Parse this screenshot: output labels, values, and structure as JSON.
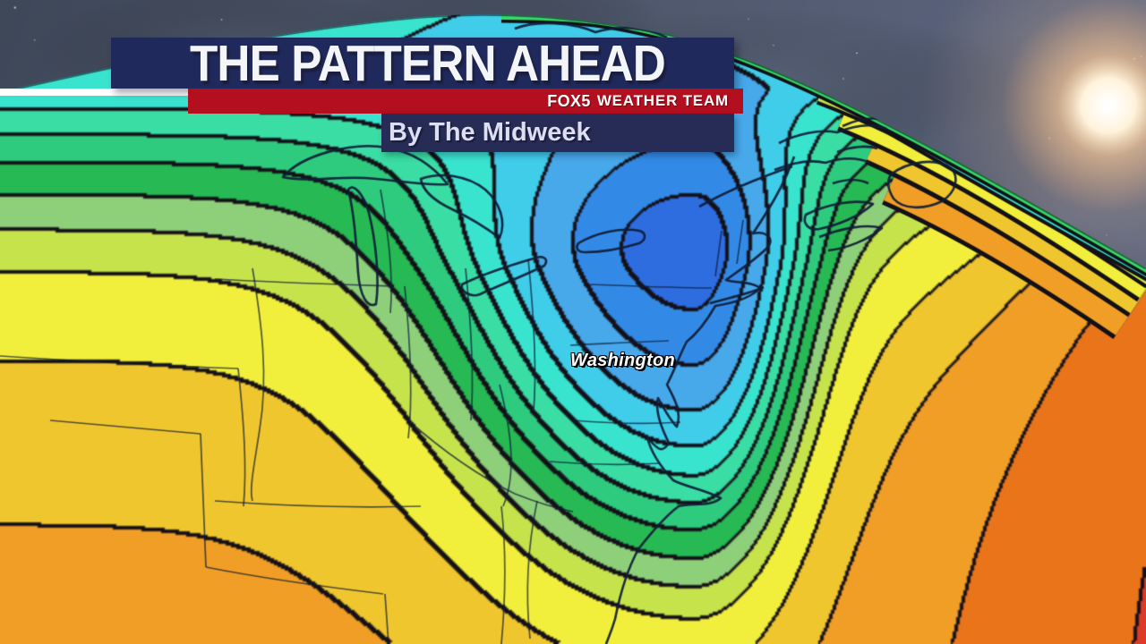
{
  "banner": {
    "title": "THE PATTERN AHEAD",
    "brand": "FOX5",
    "team": "WEATHER TEAM",
    "subtitle": "By The Midweek"
  },
  "map": {
    "city_label": "Washington",
    "band_colors": [
      "#2e6de0",
      "#338ae6",
      "#47a8ea",
      "#3fcdea",
      "#39e4cf",
      "#3adda4",
      "#2ecb7e",
      "#27b954",
      "#8ecf7a",
      "#c6e34b",
      "#f1ef3b",
      "#f0c62e",
      "#f09e25",
      "#ea7419",
      "#dc3b28"
    ],
    "band_edges": [
      -1.7,
      -1.35,
      -1.0,
      -0.7,
      -0.45,
      -0.22,
      0.0,
      0.22,
      0.42,
      0.62,
      0.92,
      1.22,
      1.62,
      2.36
    ],
    "rim_colors": {
      "orange": "#f09e25",
      "gold": "#f0c62e",
      "yellow": "#f1ef3b",
      "ygreen": "#c6e34b",
      "teal": "#39e4cf",
      "green": "#35d968"
    },
    "contour_line_color": "#141018",
    "geo_line_color": "#0e1d38",
    "globe_edge_color": "rgba(10,16,28,0.6)"
  },
  "scene": {
    "sky_top": "#3f4859",
    "sky_mid": "#4d5669",
    "sky_bottom": "#5d6680",
    "cloud_light": "#6b7489",
    "cloud_dark": "#39414f",
    "sun_core": "#ffffff",
    "sun_glow": "#ffc48c",
    "star_color": "#ffffff"
  },
  "chrome": {
    "banner_navy": "#20295c",
    "banner_red": "#b30f1f",
    "subtitle_bg": "#262c55",
    "frame_line": "#ffffff"
  }
}
